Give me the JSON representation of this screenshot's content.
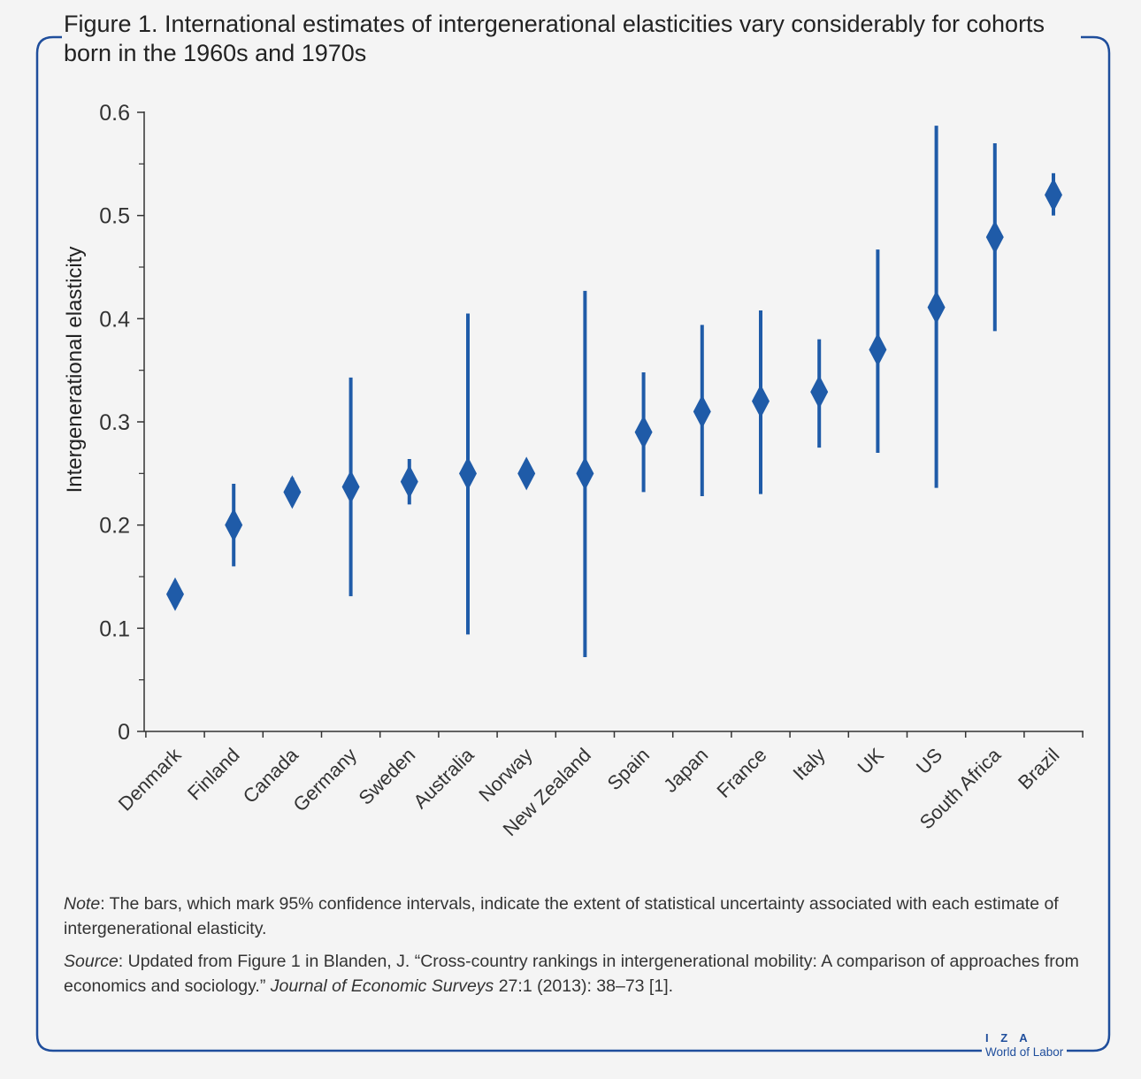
{
  "title": {
    "line1": "Figure 1. International estimates of intergenerational elasticities vary considerably for cohorts",
    "line2": "born in the 1960s and 1970s"
  },
  "note": {
    "label": "Note",
    "text": ": The bars, which mark 95% confidence intervals, indicate the extent of statistical uncertainty associated with each estimate of intergenerational elasticity."
  },
  "source": {
    "label": "Source",
    "text_before": ": Updated from Figure 1 in Blanden, J. “Cross-country rankings in intergenerational mobility: A comparison of approaches from economics and sociology.” ",
    "journal": "Journal of Economic Surveys",
    "text_after": " 27:1 (2013): 38–73 [1]."
  },
  "logo": {
    "top": "I Z A",
    "bottom": "World of Labor"
  },
  "colors": {
    "marker": "#1f5ba8",
    "frame": "#1f4e9c",
    "axis": "#333333"
  },
  "chart_data": {
    "type": "scatter",
    "ylabel": "Intergenerational elasticity",
    "ylim": [
      0,
      0.6
    ],
    "yticks": [
      0,
      0.1,
      0.2,
      0.3,
      0.4,
      0.5,
      0.6
    ],
    "ytick_labels": [
      "0",
      "0.1",
      "0.2",
      "0.3",
      "0.4",
      "0.5",
      "0.6"
    ],
    "grid": false,
    "categories": [
      "Denmark",
      "Finland",
      "Canada",
      "Germany",
      "Sweden",
      "Australia",
      "Norway",
      "New Zealand",
      "Spain",
      "Japan",
      "France",
      "Italy",
      "UK",
      "US",
      "South Africa",
      "Brazil"
    ],
    "values": [
      0.133,
      0.2,
      0.232,
      0.237,
      0.242,
      0.25,
      0.25,
      0.25,
      0.29,
      0.31,
      0.32,
      0.329,
      0.37,
      0.411,
      0.479,
      0.52
    ],
    "ci_low": [
      0.126,
      0.16,
      0.22,
      0.131,
      0.22,
      0.094,
      0.238,
      0.072,
      0.232,
      0.228,
      0.23,
      0.275,
      0.27,
      0.236,
      0.388,
      0.5
    ],
    "ci_high": [
      0.14,
      0.24,
      0.246,
      0.343,
      0.264,
      0.405,
      0.262,
      0.427,
      0.348,
      0.394,
      0.408,
      0.38,
      0.467,
      0.587,
      0.57,
      0.541
    ]
  }
}
